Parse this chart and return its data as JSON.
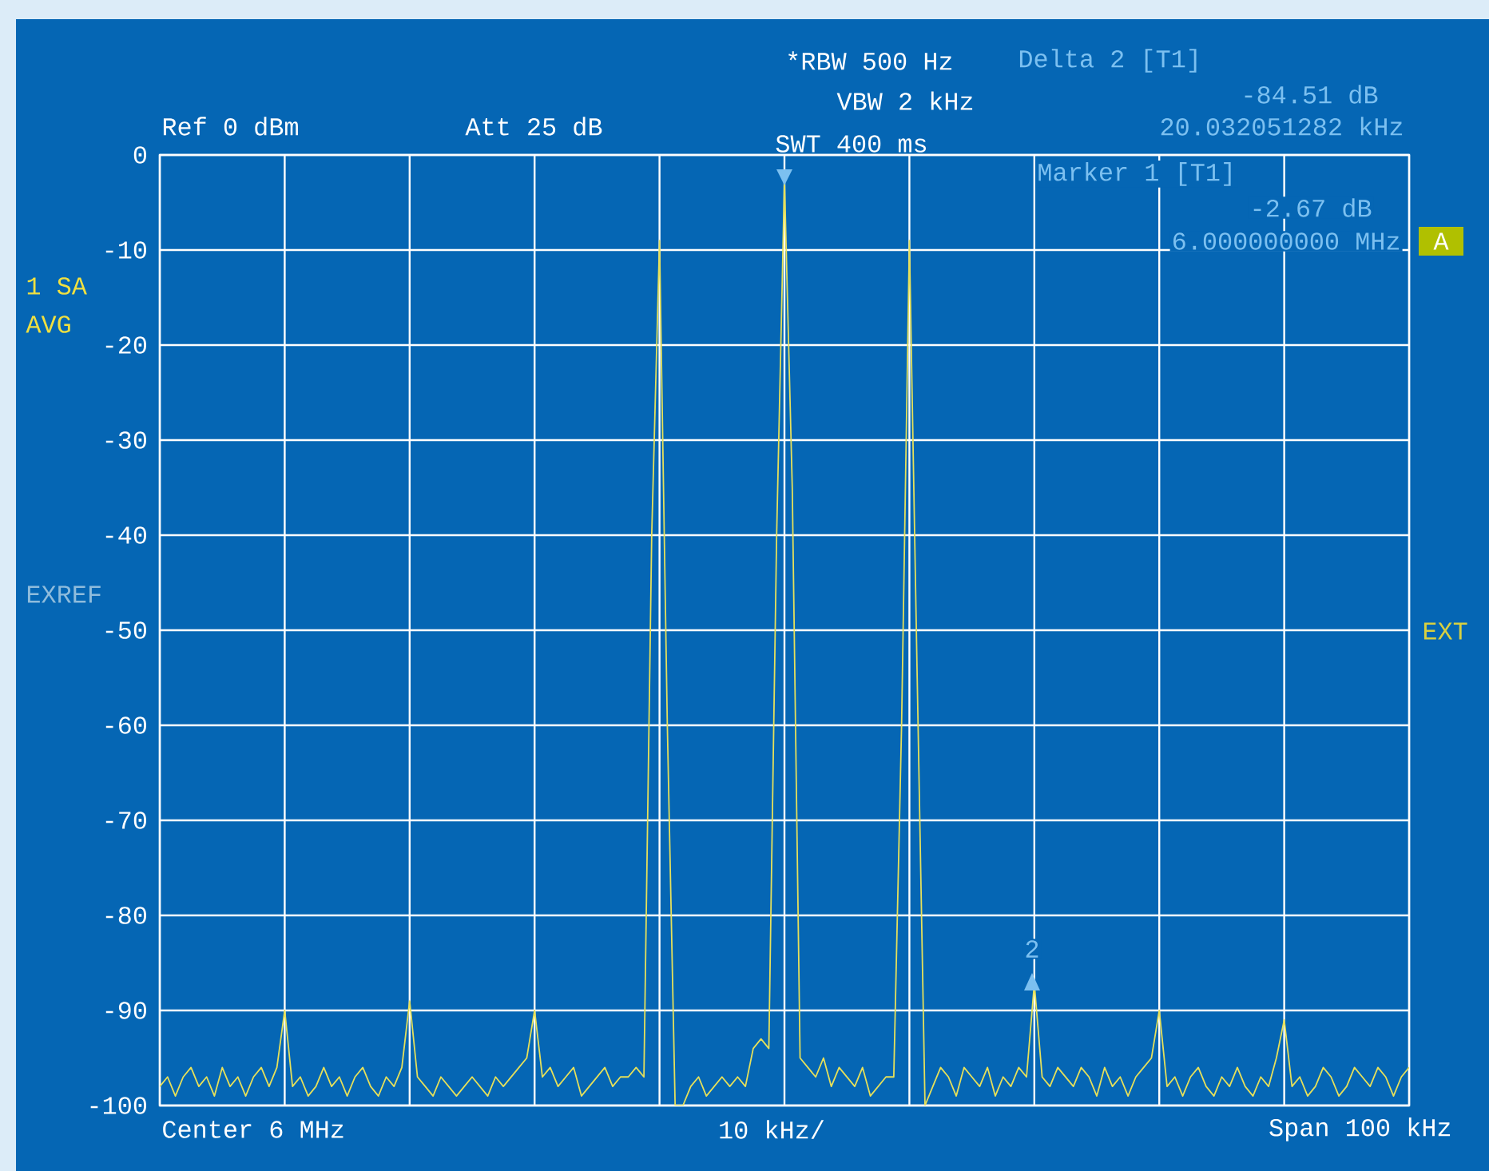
{
  "chart_data": {
    "type": "line",
    "categories": [
      null,
      null,
      null,
      null,
      null,
      null,
      null,
      null,
      null,
      null,
      null,
      null,
      null,
      null,
      null,
      null,
      null,
      null,
      null,
      null,
      null,
      null,
      null,
      null,
      null,
      null,
      null,
      null,
      null,
      null,
      null,
      null,
      null,
      null,
      null,
      null,
      null,
      null,
      null,
      null,
      null,
      null,
      null,
      null,
      null,
      null,
      null,
      null,
      null,
      null,
      null,
      null,
      null,
      null,
      null,
      null,
      null,
      null,
      null,
      null,
      null,
      null,
      null,
      null,
      null,
      null,
      null,
      null,
      null,
      null,
      null,
      null,
      null,
      null,
      null,
      null,
      null,
      null,
      null,
      null,
      null,
      null,
      null,
      null,
      null,
      null,
      null,
      null,
      null,
      null,
      null,
      null,
      null,
      null,
      null,
      null,
      null,
      null,
      null,
      null,
      null,
      null,
      null,
      null,
      null,
      null,
      null,
      null,
      null,
      null,
      null,
      null,
      null,
      null,
      null,
      null,
      null,
      null,
      null,
      null,
      null,
      null,
      null,
      null,
      null,
      null,
      null,
      null,
      null,
      null,
      null,
      null,
      null,
      null,
      null,
      null,
      null,
      null,
      null,
      null,
      null,
      null,
      null,
      null,
      null,
      null,
      null,
      null,
      null,
      null,
      null,
      null,
      null,
      null,
      null,
      null,
      null,
      null,
      null,
      null,
      null
    ],
    "values": [
      -98,
      -97,
      -99,
      -97,
      -96,
      -98,
      -97,
      -99,
      -96,
      -98,
      -97,
      -99,
      -97,
      -96,
      -98,
      -96,
      -90,
      -98,
      -97,
      -99,
      -98,
      -96,
      -98,
      -97,
      -99,
      -97,
      -96,
      -98,
      -99,
      -97,
      -98,
      -96,
      -89,
      -97,
      -98,
      -99,
      -97,
      -98,
      -99,
      -98,
      -97,
      -98,
      -99,
      -97,
      -98,
      -97,
      -96,
      -95,
      -90,
      -97,
      -96,
      -98,
      -97,
      -96,
      -99,
      -98,
      -97,
      -96,
      -98,
      -97,
      -97,
      -96,
      -97,
      -40,
      -9,
      -60,
      -100,
      -100,
      -98,
      -97,
      -99,
      -98,
      -97,
      -98,
      -97,
      -98,
      -94,
      -93,
      -94,
      -40,
      -2.67,
      -35,
      -95,
      -96,
      -97,
      -95,
      -98,
      -96,
      -97,
      -98,
      -96,
      -99,
      -98,
      -97,
      -97,
      -60,
      -9,
      -55,
      -100,
      -98,
      -96,
      -97,
      -99,
      -96,
      -97,
      -98,
      -96,
      -99,
      -97,
      -98,
      -96,
      -97,
      -87.2,
      -97,
      -98,
      -96,
      -97,
      -98,
      -96,
      -97,
      -99,
      -96,
      -98,
      -97,
      -99,
      -97,
      -96,
      -95,
      -90,
      -98,
      -97,
      -99,
      -97,
      -96,
      -98,
      -99,
      -97,
      -98,
      -96,
      -98,
      -99,
      -97,
      -98,
      -95,
      -91,
      -98,
      -97,
      -99,
      -98,
      -96,
      -97,
      -99,
      -98,
      -96,
      -97,
      -98,
      -96,
      -97,
      -99,
      -97,
      -96
    ],
    "color": "#e6e05a",
    "ylim": [
      -100,
      0
    ],
    "yticks": [
      0,
      -10,
      -20,
      -30,
      -40,
      -50,
      -60,
      -70,
      -80,
      -90,
      -100
    ],
    "grid": true,
    "annotations": [
      "*RBW 500 Hz",
      "VBW 2 kHz",
      "SWT 400 ms",
      "Delta 2 [T1]",
      "-84.51 dB",
      "20.032051282 kHz",
      "Ref 0 dBm",
      "Att 25 dB",
      "Marker 1 [T1]",
      "-2.67 dB",
      "6.000000000 MHz",
      "A",
      "1 SA",
      "AVG",
      "EXREF",
      "EXT",
      "Center 6 MHz",
      "10 kHz/",
      "Span 100 kHz",
      "2"
    ]
  }
}
